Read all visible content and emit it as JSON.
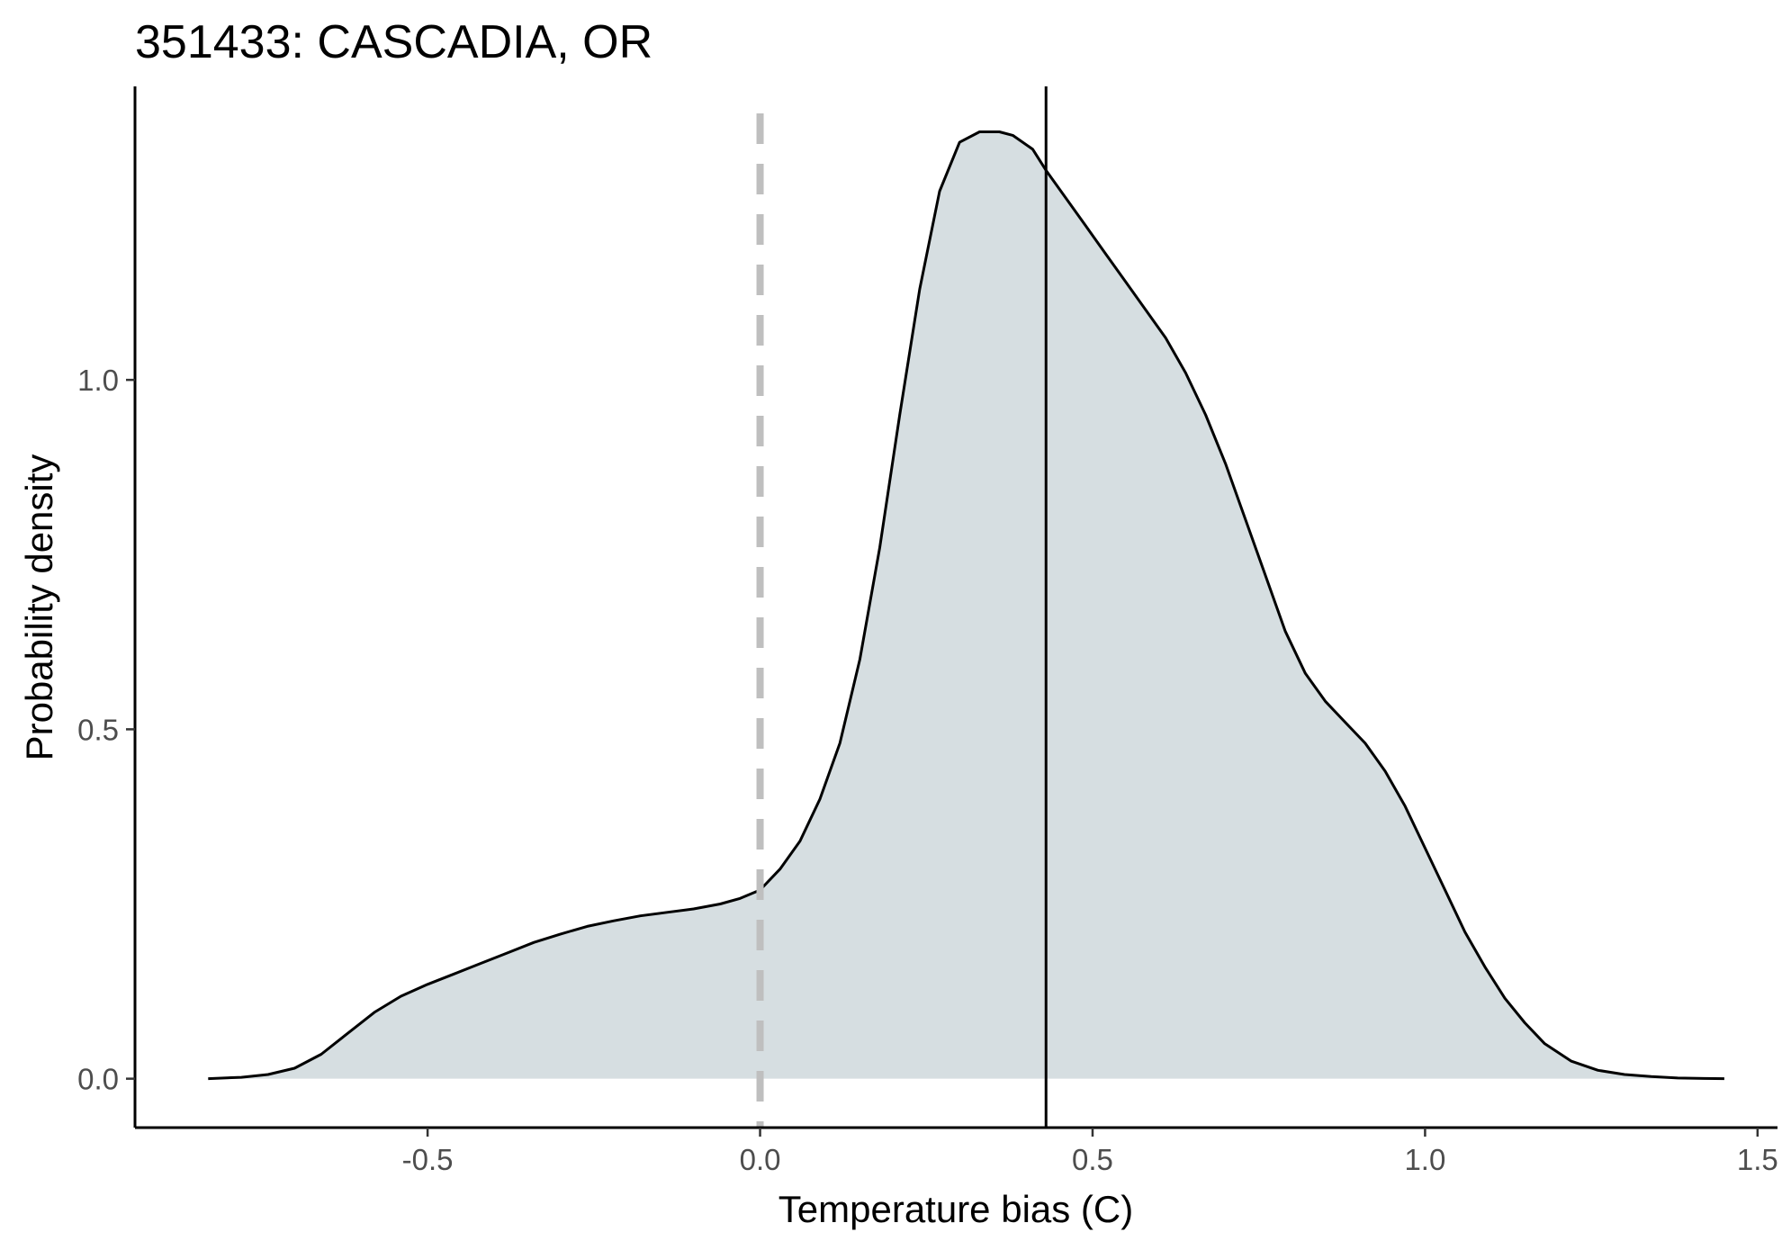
{
  "chart_data": {
    "type": "area",
    "title": "351433: CASCADIA, OR",
    "xlabel": "Temperature bias (C)",
    "ylabel": "Probability density",
    "xlim": [
      -0.94,
      1.53
    ],
    "ylim": [
      -0.07,
      1.42
    ],
    "x_ticks": [
      -0.5,
      0.0,
      0.5,
      1.0,
      1.5
    ],
    "x_tick_labels": [
      "-0.5",
      "0.0",
      "0.5",
      "1.0",
      "1.5"
    ],
    "y_ticks": [
      0.0,
      0.5,
      1.0
    ],
    "y_tick_labels": [
      "0.0",
      "0.5",
      "1.0"
    ],
    "grid": false,
    "legend": "none",
    "fill_color": "#d6dee1",
    "line_color": "#000000",
    "reference_lines": [
      {
        "x": 0.0,
        "style": "dashed",
        "color": "#bfbfbf"
      },
      {
        "x": 0.43,
        "style": "solid",
        "color": "#000000"
      }
    ],
    "series": [
      {
        "x": [
          -0.83,
          -0.78,
          -0.74,
          -0.7,
          -0.66,
          -0.62,
          -0.58,
          -0.54,
          -0.5,
          -0.46,
          -0.42,
          -0.38,
          -0.34,
          -0.3,
          -0.26,
          -0.22,
          -0.18,
          -0.14,
          -0.1,
          -0.06,
          -0.03,
          0.0,
          0.03,
          0.06,
          0.09,
          0.12,
          0.15,
          0.18,
          0.21,
          0.24,
          0.27,
          0.3,
          0.33,
          0.36,
          0.38,
          0.41,
          0.43,
          0.46,
          0.49,
          0.52,
          0.55,
          0.58,
          0.61,
          0.64,
          0.67,
          0.7,
          0.73,
          0.76,
          0.79,
          0.82,
          0.85,
          0.88,
          0.91,
          0.94,
          0.97,
          1.0,
          1.03,
          1.06,
          1.09,
          1.12,
          1.15,
          1.18,
          1.22,
          1.26,
          1.3,
          1.34,
          1.38,
          1.42,
          1.45
        ],
        "y": [
          0.0,
          0.002,
          0.006,
          0.015,
          0.035,
          0.065,
          0.095,
          0.118,
          0.135,
          0.15,
          0.165,
          0.18,
          0.195,
          0.207,
          0.218,
          0.226,
          0.233,
          0.238,
          0.243,
          0.25,
          0.258,
          0.27,
          0.3,
          0.34,
          0.4,
          0.48,
          0.6,
          0.76,
          0.95,
          1.13,
          1.27,
          1.34,
          1.355,
          1.355,
          1.35,
          1.33,
          1.3,
          1.26,
          1.22,
          1.18,
          1.14,
          1.1,
          1.06,
          1.01,
          0.95,
          0.88,
          0.8,
          0.72,
          0.64,
          0.58,
          0.54,
          0.51,
          0.48,
          0.44,
          0.39,
          0.33,
          0.27,
          0.21,
          0.16,
          0.115,
          0.08,
          0.05,
          0.025,
          0.012,
          0.006,
          0.003,
          0.001,
          0.0003,
          0.0
        ]
      }
    ]
  }
}
